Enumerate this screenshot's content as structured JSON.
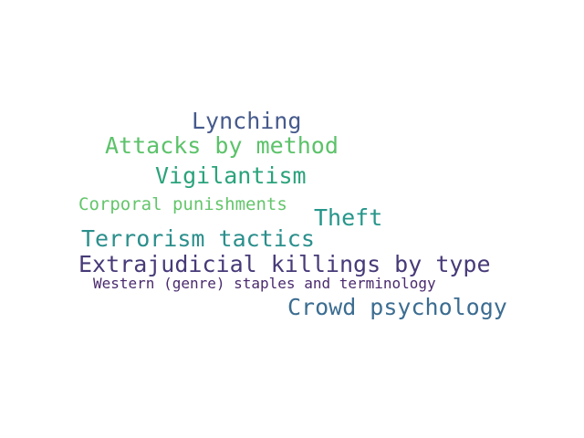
{
  "words": [
    {
      "text": "Lynching",
      "color": "#465a8c"
    },
    {
      "text": "Attacks by method",
      "color": "#5cc26a"
    },
    {
      "text": "Vigilantism",
      "color": "#2ba37c"
    },
    {
      "text": "Corporal punishments",
      "color": "#64c56b"
    },
    {
      "text": "Theft",
      "color": "#26968a"
    },
    {
      "text": "Terrorism tactics",
      "color": "#2b8f8c"
    },
    {
      "text": "Extrajudicial killings by type",
      "color": "#473a78"
    },
    {
      "text": "Western (genre) staples and terminology",
      "color": "#4a2a6e"
    },
    {
      "text": "Crowd psychology",
      "color": "#3c6d91"
    }
  ]
}
